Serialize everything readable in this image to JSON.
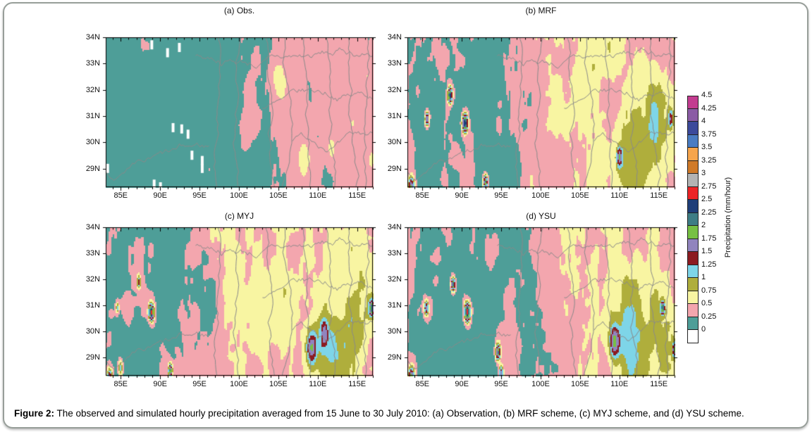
{
  "figure": {
    "caption_label": "Figure 2:",
    "caption_text": " The observed and simulated hourly precipitation averaged from 15 June to 30 July 2010: (a) Observation, (b) MRF scheme, (c) MYJ scheme, and (d) YSU scheme."
  },
  "chart_data": {
    "type": "heatmap",
    "title": "Observed and simulated hourly precipitation (15 June - 30 July 2010)",
    "x_axis": {
      "min": 83.1,
      "max": 117.0,
      "tick_values": [
        85,
        90,
        95,
        100,
        105,
        110,
        115
      ],
      "tick_labels": [
        "85E",
        "90E",
        "95E",
        "100E",
        "105E",
        "110E",
        "115E"
      ],
      "minor_step_deg": 1
    },
    "y_axis": {
      "min": 28.3,
      "max": 34.0,
      "tick_values": [
        34,
        33,
        32,
        31,
        30,
        29
      ],
      "tick_labels": [
        "34N",
        "33N",
        "32N",
        "31N",
        "30N",
        "29N"
      ],
      "minor_step_deg": 1
    },
    "value_step_mm_per_hour": 0.25,
    "value_range": [
      0,
      4.5
    ],
    "colorbar": {
      "title": "Precipitation (mm/hour)",
      "boundary_labels": [
        "4.5",
        "4.25",
        "4",
        "3.75",
        "3.5",
        "3.25",
        "3",
        "2.75",
        "2.5",
        "2.25",
        "2",
        "1.75",
        "1.5",
        "1.25",
        "1",
        "0.75",
        "0.5",
        "0.25",
        "0"
      ],
      "band_colors_low_to_high": [
        "#4E9E98",
        "#F3A6AE",
        "#F8F5A2",
        "#AFAE3C",
        "#7ED5E8",
        "#8C1B21",
        "#9184BE",
        "#77C043",
        "#3E7D85",
        "#1F3E79",
        "#EC2426",
        "#B3B3B3",
        "#D07A28",
        "#F6A54C",
        "#4A7CC2",
        "#3C4A9B",
        "#8B5CA5",
        "#C33C90"
      ],
      "zero_color": "#FFFFFF"
    },
    "boundaries": {
      "color": "#8A8A8A",
      "seed": 7
    },
    "panels": [
      {
        "id": "a",
        "title": "(a) Obs.",
        "seed": 101,
        "bias_west": 0.1,
        "bias_east": 0.34,
        "noise_amp": 0.18,
        "east_pivot_lon": 95,
        "storm_cells": [
          {
            "lon": 104.8,
            "lat": 32.3,
            "peak": 0.32,
            "radius": 1.3
          },
          {
            "lon": 108.3,
            "lat": 29.3,
            "peak": 0.3,
            "radius": 1.0
          },
          {
            "lon": 111.8,
            "lat": 29.7,
            "peak": 0.28,
            "radius": 0.8
          },
          {
            "lon": 116.4,
            "lat": 32.6,
            "peak": 0.25,
            "radius": 0.8
          },
          {
            "lon": 116.8,
            "lat": 29.4,
            "peak": 0.28,
            "radius": 0.7
          },
          {
            "lon": 101.0,
            "lat": 30.3,
            "peak": 0.18,
            "radius": 0.9
          }
        ],
        "missing_cells": [
          {
            "lon": 88.9,
            "lat": 33.7
          },
          {
            "lon": 90.9,
            "lat": 33.4
          },
          {
            "lon": 92.4,
            "lat": 33.6
          },
          {
            "lon": 91.6,
            "lat": 30.55
          },
          {
            "lon": 92.7,
            "lat": 30.5
          },
          {
            "lon": 93.5,
            "lat": 30.3
          },
          {
            "lon": 94.0,
            "lat": 29.5
          },
          {
            "lon": 95.3,
            "lat": 29.3
          },
          {
            "lon": 95.3,
            "lat": 29.0
          },
          {
            "lon": 83.3,
            "lat": 29.0
          },
          {
            "lon": 89.2,
            "lat": 28.4
          },
          {
            "lon": 90.0,
            "lat": 28.3
          }
        ]
      },
      {
        "id": "b",
        "title": "(b) MRF",
        "seed": 202,
        "bias_west": 0.15,
        "bias_east": 0.52,
        "noise_amp": 0.3,
        "east_pivot_lon": 92,
        "storm_cells": [
          {
            "lon": 88.5,
            "lat": 31.8,
            "peak": 2.3,
            "radius": 0.4
          },
          {
            "lon": 85.6,
            "lat": 30.9,
            "peak": 1.8,
            "radius": 0.35
          },
          {
            "lon": 90.4,
            "lat": 30.75,
            "peak": 2.4,
            "radius": 0.5
          },
          {
            "lon": 83.6,
            "lat": 28.3,
            "peak": 1.6,
            "radius": 0.55
          },
          {
            "lon": 93.0,
            "lat": 28.5,
            "peak": 2.0,
            "radius": 0.4
          },
          {
            "lon": 110.0,
            "lat": 29.45,
            "peak": 1.1,
            "radius": 0.5
          },
          {
            "lon": 116.5,
            "lat": 30.9,
            "peak": 0.9,
            "radius": 0.45
          },
          {
            "lon": 111.5,
            "lat": 29.8,
            "peak": 0.5,
            "radius": 2.8
          },
          {
            "lon": 114.8,
            "lat": 30.6,
            "peak": 0.35,
            "radius": 2.2
          }
        ],
        "missing_cells": []
      },
      {
        "id": "c",
        "title": "(c) MYJ",
        "seed": 303,
        "bias_west": 0.16,
        "bias_east": 0.55,
        "noise_amp": 0.32,
        "east_pivot_lon": 91,
        "storm_cells": [
          {
            "lon": 87.3,
            "lat": 31.9,
            "peak": 1.1,
            "radius": 0.35
          },
          {
            "lon": 84.6,
            "lat": 30.9,
            "peak": 0.9,
            "radius": 0.3
          },
          {
            "lon": 88.9,
            "lat": 30.75,
            "peak": 2.3,
            "radius": 0.45
          },
          {
            "lon": 109.2,
            "lat": 29.4,
            "peak": 1.2,
            "radius": 0.9
          },
          {
            "lon": 110.8,
            "lat": 29.9,
            "peak": 0.8,
            "radius": 0.7
          },
          {
            "lon": 116.8,
            "lat": 30.9,
            "peak": 1.5,
            "radius": 0.4
          },
          {
            "lon": 83.6,
            "lat": 28.2,
            "peak": 1.5,
            "radius": 0.55
          },
          {
            "lon": 91.3,
            "lat": 28.5,
            "peak": 1.9,
            "radius": 0.35
          },
          {
            "lon": 85.0,
            "lat": 28.6,
            "peak": 1.1,
            "radius": 0.45
          },
          {
            "lon": 111.0,
            "lat": 29.6,
            "peak": 0.5,
            "radius": 2.8
          },
          {
            "lon": 114.5,
            "lat": 30.2,
            "peak": 0.35,
            "radius": 2.0
          }
        ],
        "missing_cells": []
      },
      {
        "id": "d",
        "title": "(d) YSU",
        "seed": 404,
        "bias_west": 0.15,
        "bias_east": 0.52,
        "noise_amp": 0.31,
        "east_pivot_lon": 92,
        "storm_cells": [
          {
            "lon": 88.9,
            "lat": 31.8,
            "peak": 2.2,
            "radius": 0.4
          },
          {
            "lon": 85.5,
            "lat": 30.9,
            "peak": 1.4,
            "radius": 0.4
          },
          {
            "lon": 90.7,
            "lat": 30.75,
            "peak": 2.5,
            "radius": 0.5
          },
          {
            "lon": 94.6,
            "lat": 29.2,
            "peak": 1.9,
            "radius": 0.45
          },
          {
            "lon": 109.4,
            "lat": 29.6,
            "peak": 1.3,
            "radius": 0.9
          },
          {
            "lon": 115.5,
            "lat": 30.9,
            "peak": 1.7,
            "radius": 0.35
          },
          {
            "lon": 83.6,
            "lat": 28.2,
            "peak": 1.7,
            "radius": 0.55
          },
          {
            "lon": 95.0,
            "lat": 28.4,
            "peak": 1.5,
            "radius": 0.4
          },
          {
            "lon": 117.0,
            "lat": 29.3,
            "peak": 1.3,
            "radius": 0.35
          },
          {
            "lon": 111.3,
            "lat": 29.7,
            "peak": 0.5,
            "radius": 2.8
          },
          {
            "lon": 115.0,
            "lat": 30.3,
            "peak": 0.35,
            "radius": 2.2
          }
        ],
        "missing_cells": []
      }
    ]
  }
}
